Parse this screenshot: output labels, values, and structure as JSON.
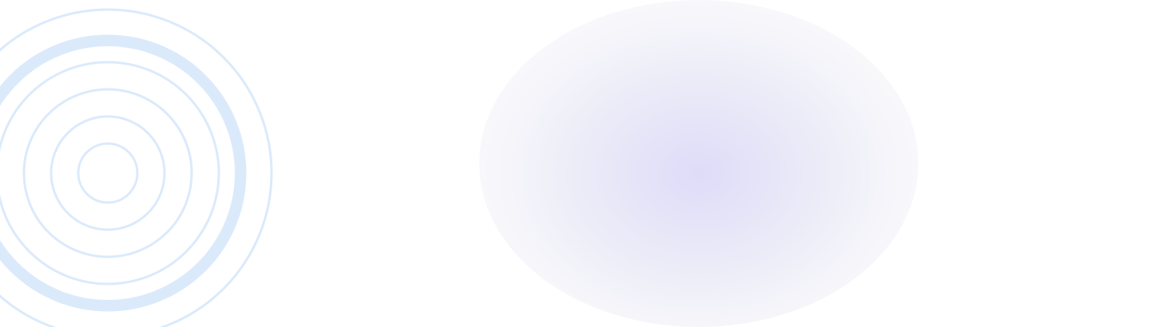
{
  "decoration": {
    "ring_color": "#dbeafb",
    "ring_color_thick": "#dbeafb",
    "glow_color": "#e4e2f7",
    "background": "#ffffff",
    "ring_count": 7
  }
}
